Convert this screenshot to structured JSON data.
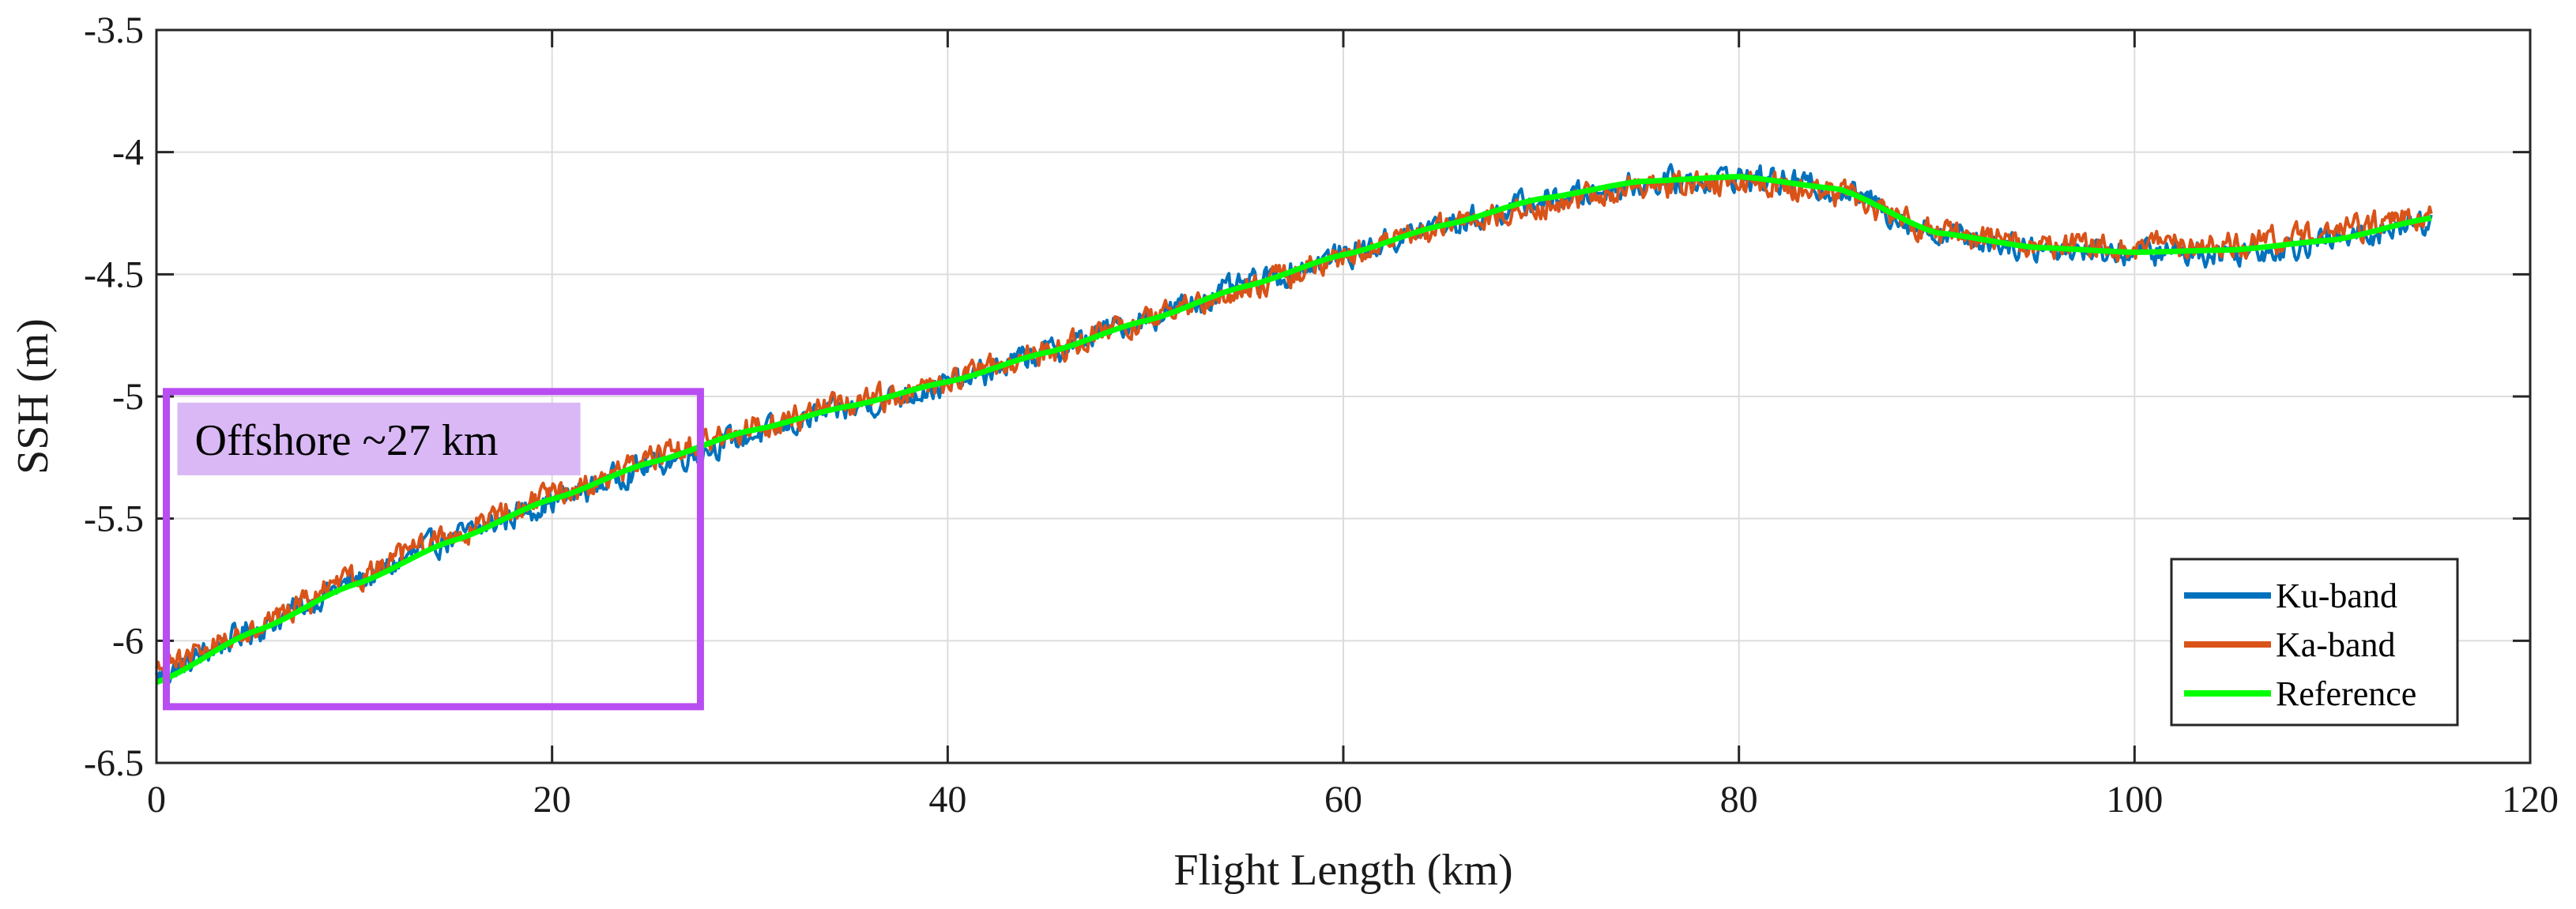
{
  "chart_data": {
    "type": "line",
    "title": "",
    "xlabel": "Flight Length (km)",
    "ylabel": "SSH (m)",
    "xlim": [
      0,
      120
    ],
    "ylim": [
      -6.5,
      -3.5
    ],
    "xticks": [
      0,
      20,
      40,
      60,
      80,
      100,
      120
    ],
    "yticks": [
      -6.5,
      -6,
      -5.5,
      -5,
      -4.5,
      -4,
      -3.5
    ],
    "xtick_labels": [
      "0",
      "20",
      "40",
      "60",
      "80",
      "100",
      "120"
    ],
    "ytick_labels": [
      "-6.5",
      "-6",
      "-5.5",
      "-5",
      "-4.5",
      "-4",
      "-3.5"
    ],
    "grid": true,
    "legend_position": "bottom-right",
    "series": [
      {
        "name": "Ku-band",
        "color": "#0072BD",
        "noise_amplitude": 0.06,
        "x": [
          0,
          5,
          10,
          15,
          20,
          25,
          30,
          35,
          40,
          45,
          50,
          55,
          60,
          65,
          70,
          75,
          80,
          85,
          90,
          95,
          100,
          105,
          110,
          115
        ],
        "y": [
          -6.15,
          -5.95,
          -5.76,
          -5.58,
          -5.43,
          -5.28,
          -5.16,
          -5.05,
          -4.95,
          -4.82,
          -4.68,
          -4.55,
          -4.42,
          -4.3,
          -4.2,
          -4.13,
          -4.1,
          -4.15,
          -4.33,
          -4.39,
          -4.41,
          -4.41,
          -4.36,
          -4.28
        ]
      },
      {
        "name": "Ka-band",
        "color": "#D95319",
        "noise_amplitude": 0.06,
        "x": [
          0,
          5,
          10,
          15,
          20,
          25,
          30,
          35,
          40,
          45,
          50,
          55,
          60,
          65,
          70,
          75,
          80,
          85,
          90,
          95,
          100,
          105,
          110,
          115
        ],
        "y": [
          -6.12,
          -5.94,
          -5.75,
          -5.56,
          -5.41,
          -5.26,
          -5.13,
          -5.03,
          -4.94,
          -4.82,
          -4.69,
          -4.56,
          -4.43,
          -4.31,
          -4.21,
          -4.14,
          -4.12,
          -4.17,
          -4.33,
          -4.38,
          -4.39,
          -4.38,
          -4.33,
          -4.25
        ]
      },
      {
        "name": "Reference",
        "color": "#00FF00",
        "noise_amplitude": 0,
        "x": [
          0,
          5,
          10,
          15,
          20,
          25,
          30,
          35,
          40,
          45,
          50,
          55,
          60,
          65,
          70,
          75,
          80,
          85,
          90,
          95,
          100,
          105,
          110,
          115
        ],
        "y": [
          -6.17,
          -5.96,
          -5.77,
          -5.59,
          -5.42,
          -5.27,
          -5.14,
          -5.04,
          -4.94,
          -4.82,
          -4.69,
          -4.55,
          -4.42,
          -4.3,
          -4.19,
          -4.12,
          -4.1,
          -4.15,
          -4.33,
          -4.39,
          -4.41,
          -4.4,
          -4.36,
          -4.27
        ]
      }
    ],
    "annotations": [
      {
        "text": "Offshore  ~27 km",
        "box_color": "#B84DF2",
        "label_bg": "#D9B8F5",
        "x_range": [
          0.5,
          27.5
        ],
        "y_range": [
          -6.27,
          -4.98
        ]
      }
    ]
  }
}
